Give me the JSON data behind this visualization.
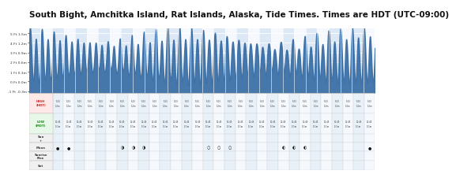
{
  "title": "South Bight, Amchitka Island, Rat Islands, Alaska, Tide Times. Times are HDT (UTC-09:00)",
  "title_fontsize": 7.5,
  "title_color": "#111111",
  "bg_color": "#ffffff",
  "chart_bg_even": "#dce8f5",
  "chart_bg_odd": "#f5f8fc",
  "wave_color": "#3a6ea5",
  "header_bg": "#3a6ea5",
  "header_text": "#ffffff",
  "subheader_bg": "#c8d8ee",
  "subheader_text": "#333333",
  "y_labels": [
    "5 Ft 1.5m",
    "4 Ft 1.2m",
    "3 Ft 0.9m",
    "2 Ft 0.6m",
    "1 Ft 0.3m",
    "0 Ft 0.0m",
    "-1 Ft -0.3m"
  ],
  "y_values": [
    1.5,
    1.2,
    0.9,
    0.6,
    0.3,
    0.0,
    -0.3
  ],
  "num_days": 30,
  "header_bg_color": "#3d6fad",
  "table_high_bg": "#ffe8e8",
  "table_low_bg": "#e8f8e8",
  "table_even_col": "#e8f0f8",
  "table_odd_col": "#f5f8fc",
  "high_label_color": "#cc2222",
  "low_label_color": "#228822",
  "moon_color": "#222222"
}
